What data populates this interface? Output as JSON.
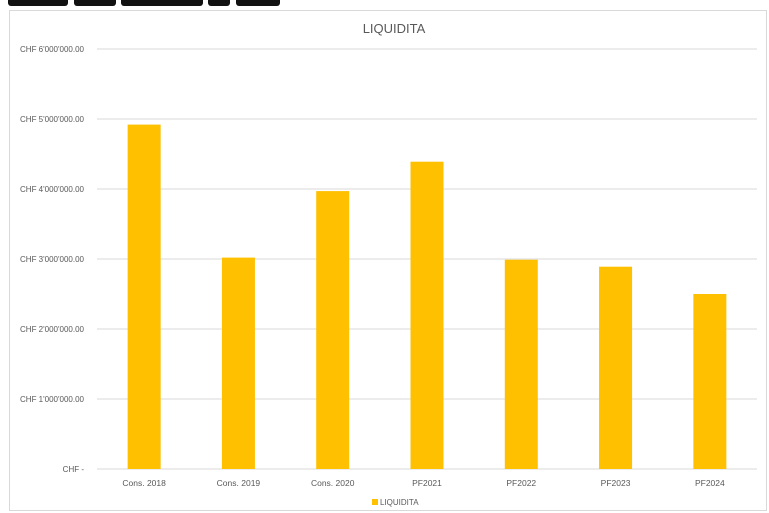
{
  "chart_data": {
    "type": "bar",
    "title": "LIQUIDITA",
    "xlabel": "",
    "ylabel": "",
    "categories": [
      "Cons. 2018",
      "Cons. 2019",
      "Cons. 2020",
      "PF2021",
      "PF2022",
      "PF2023",
      "PF2024"
    ],
    "series": [
      {
        "name": "LIQUIDITA",
        "values": [
          4920000,
          3020000,
          3970000,
          4390000,
          2990000,
          2890000,
          2500000
        ],
        "color": "#FFC000"
      }
    ],
    "ylim": [
      0,
      6000000
    ],
    "yticks": [
      0,
      1000000,
      2000000,
      3000000,
      4000000,
      5000000,
      6000000
    ],
    "ytick_labels": [
      "CHF -",
      "CHF 1'000'000.00",
      "CHF 2'000'000.00",
      "CHF 3'000'000.00",
      "CHF 4'000'000.00",
      "CHF 5'000'000.00",
      "CHF 6'000'000.00"
    ],
    "grid": true,
    "legend": "bottom",
    "gridline_color": "#d9d9d9"
  }
}
